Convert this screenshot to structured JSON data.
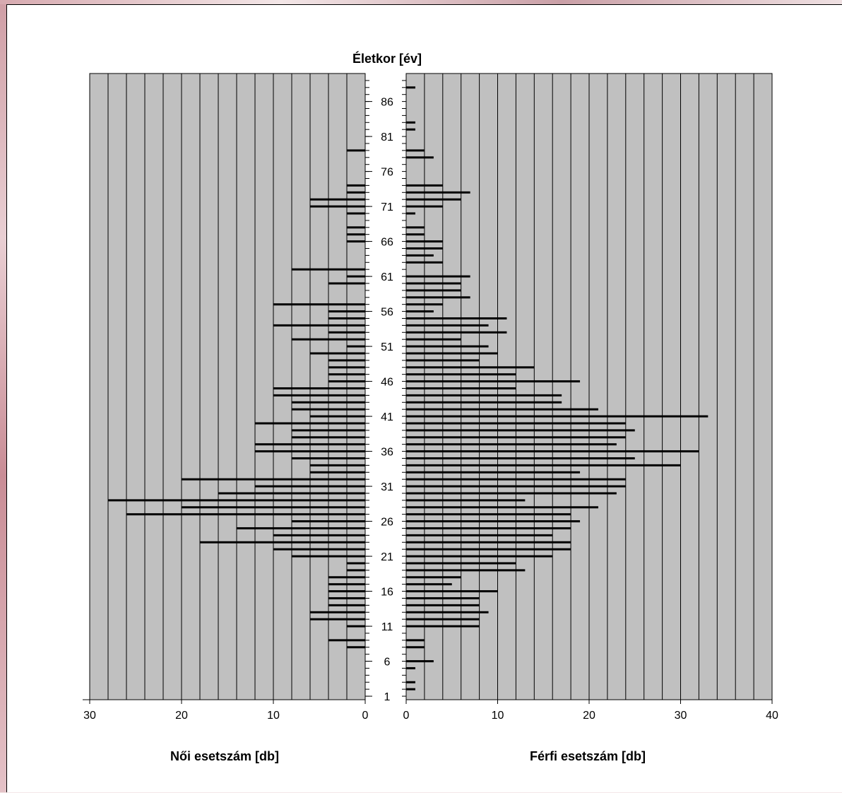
{
  "chart_data": {
    "type": "bar",
    "layout": "population-pyramid",
    "title": "Életkor [év]",
    "left_panel": {
      "xlabel": "Női esetszám [db]",
      "xlim": [
        0,
        30
      ],
      "ticks": [
        30,
        20,
        10,
        0
      ]
    },
    "right_panel": {
      "xlabel": "Férfi esetszám [db]",
      "xlim": [
        0,
        40
      ],
      "ticks": [
        0,
        10,
        20,
        30,
        40
      ]
    },
    "age_axis": {
      "range": [
        1,
        89
      ],
      "tick_labels": [
        "1",
        "6",
        "11",
        "16",
        "21",
        "26",
        "31",
        "36",
        "41",
        "46",
        "51",
        "56",
        "61",
        "66",
        "71",
        "76",
        "81",
        "86"
      ]
    },
    "grid": true,
    "background_color": "#c0c0c0",
    "bar_color": "#000000",
    "series": [
      {
        "name": "Női",
        "ages": [
          8,
          9,
          11,
          12,
          13,
          14,
          15,
          16,
          17,
          18,
          19,
          20,
          21,
          22,
          23,
          24,
          25,
          26,
          27,
          28,
          29,
          30,
          31,
          32,
          33,
          34,
          35,
          36,
          37,
          38,
          39,
          40,
          41,
          42,
          43,
          44,
          45,
          46,
          47,
          48,
          49,
          50,
          51,
          52,
          53,
          54,
          55,
          56,
          57,
          60,
          61,
          62,
          66,
          67,
          68,
          70,
          71,
          72,
          73,
          74,
          79
        ],
        "values": [
          2,
          4,
          2,
          6,
          6,
          4,
          4,
          4,
          4,
          4,
          2,
          2,
          8,
          10,
          18,
          10,
          14,
          8,
          26,
          20,
          28,
          16,
          12,
          20,
          6,
          6,
          8,
          12,
          12,
          8,
          8,
          12,
          6,
          8,
          8,
          10,
          10,
          4,
          4,
          4,
          4,
          6,
          2,
          8,
          4,
          10,
          4,
          4,
          10,
          4,
          2,
          8,
          2,
          2,
          2,
          2,
          6,
          6,
          2,
          2,
          2
        ]
      },
      {
        "name": "Férfi",
        "ages": [
          2,
          3,
          5,
          6,
          8,
          9,
          11,
          12,
          13,
          14,
          15,
          16,
          17,
          18,
          19,
          20,
          21,
          22,
          23,
          24,
          25,
          26,
          27,
          28,
          29,
          30,
          31,
          32,
          33,
          34,
          35,
          36,
          37,
          38,
          39,
          40,
          41,
          42,
          43,
          44,
          45,
          46,
          47,
          48,
          49,
          50,
          51,
          52,
          53,
          54,
          55,
          56,
          57,
          58,
          59,
          60,
          61,
          63,
          64,
          65,
          66,
          67,
          68,
          70,
          71,
          72,
          73,
          74,
          78,
          79,
          82,
          83,
          88
        ],
        "values": [
          1,
          1,
          1,
          3,
          2,
          2,
          8,
          8,
          9,
          8,
          8,
          10,
          5,
          6,
          13,
          12,
          16,
          18,
          18,
          16,
          18,
          19,
          18,
          21,
          13,
          23,
          24,
          24,
          19,
          30,
          25,
          32,
          23,
          24,
          25,
          24,
          33,
          21,
          17,
          17,
          12,
          19,
          12,
          14,
          8,
          10,
          9,
          6,
          11,
          9,
          11,
          3,
          4,
          7,
          6,
          6,
          7,
          4,
          3,
          4,
          4,
          2,
          2,
          1,
          4,
          6,
          7,
          4,
          3,
          2,
          1,
          1,
          1
        ]
      }
    ]
  }
}
